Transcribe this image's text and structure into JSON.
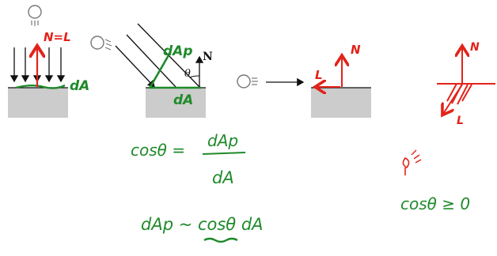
{
  "panel1": {
    "n_eq_l": "N=L",
    "area": "dA"
  },
  "panel2": {
    "area_proj": "dAp",
    "normal": "N",
    "angle": "θ",
    "area": "dA"
  },
  "panel3": {
    "light": "L",
    "normal": "N"
  },
  "panel4": {
    "normal": "N",
    "light": "L"
  },
  "equations": {
    "cos_lhs": "cosθ =",
    "frac_num": "dAp",
    "frac_den": "dA",
    "prop": "dAp ~ cosθ dA",
    "condition": "cosθ ≥ 0"
  },
  "colors": {
    "green": "#1f8a2a",
    "red": "#e2231a",
    "gray": "#cccccc"
  }
}
